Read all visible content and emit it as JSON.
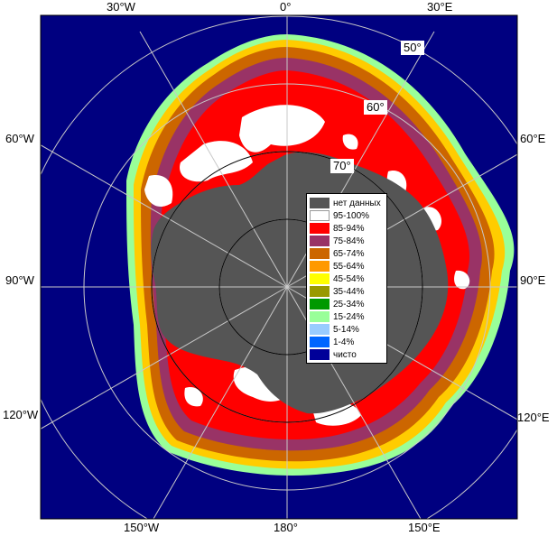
{
  "map": {
    "longitude_labels": {
      "top": [
        "30°W",
        "0°",
        "30°E"
      ],
      "left": [
        "60°W",
        "90°W",
        "120°W"
      ],
      "right": [
        "60°E",
        "90°E",
        "120°E"
      ],
      "bottom": [
        "150°W",
        "180°",
        "150°E"
      ]
    },
    "latitude_labels": [
      "50°",
      "60°",
      "70°"
    ]
  },
  "legend": {
    "items": [
      {
        "label": "нет данных",
        "color": "#555555"
      },
      {
        "label": "95-100%",
        "color": "#ffffff"
      },
      {
        "label": "85-94%",
        "color": "#ff0000"
      },
      {
        "label": "75-84%",
        "color": "#993366"
      },
      {
        "label": "65-74%",
        "color": "#cc6600"
      },
      {
        "label": "55-64%",
        "color": "#ff9900"
      },
      {
        "label": "45-54%",
        "color": "#ffff00"
      },
      {
        "label": "35-44%",
        "color": "#999900"
      },
      {
        "label": "25-34%",
        "color": "#009900"
      },
      {
        "label": "15-24%",
        "color": "#99ff99"
      },
      {
        "label": "5-14%",
        "color": "#99ccff"
      },
      {
        "label": "1-4%",
        "color": "#0066ff"
      },
      {
        "label": "чисто",
        "color": "#000099"
      }
    ]
  },
  "colors": {
    "ocean": "#000080",
    "land": "#555555",
    "ice_high": "#ff0000",
    "ice_full": "#ffffff",
    "grid": "#c8c8c8"
  }
}
